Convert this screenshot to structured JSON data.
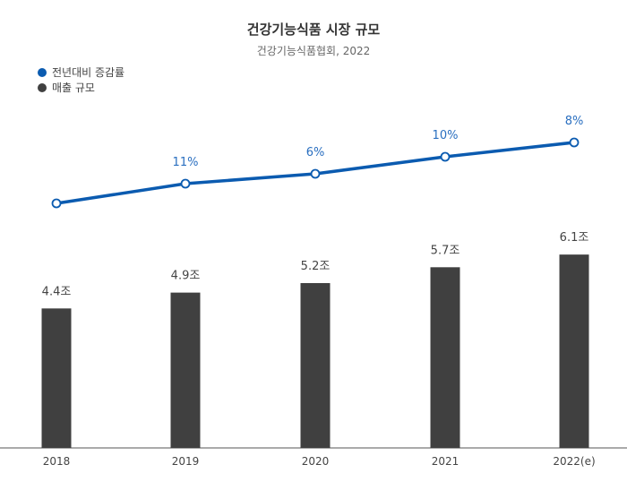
{
  "chart_data": {
    "type": "bar",
    "title": "건강기능식품 시장 규모",
    "subtitle": "건강기능식품협회, 2022",
    "categories": [
      "2018",
      "2019",
      "2020",
      "2021",
      "2022(e)"
    ],
    "series": [
      {
        "name": "매출 규모",
        "kind": "bar",
        "values": [
          4.4,
          4.9,
          5.2,
          5.7,
          6.1
        ],
        "labels": [
          "4.4조",
          "4.9조",
          "5.2조",
          "5.7조",
          "6.1조"
        ],
        "color": "#404040"
      },
      {
        "name": "전년대비 증감률",
        "kind": "line",
        "values": [
          null,
          11,
          6,
          10,
          8
        ],
        "labels": [
          "",
          "11%",
          "6%",
          "10%",
          "8%"
        ],
        "color": "#0b5bb0"
      }
    ],
    "ylim": [
      0,
      7.8
    ],
    "legend_position": "top-left",
    "grid": false
  },
  "legend": {
    "line_label": "전년대비 증감률",
    "bar_label": "매출 규모"
  }
}
